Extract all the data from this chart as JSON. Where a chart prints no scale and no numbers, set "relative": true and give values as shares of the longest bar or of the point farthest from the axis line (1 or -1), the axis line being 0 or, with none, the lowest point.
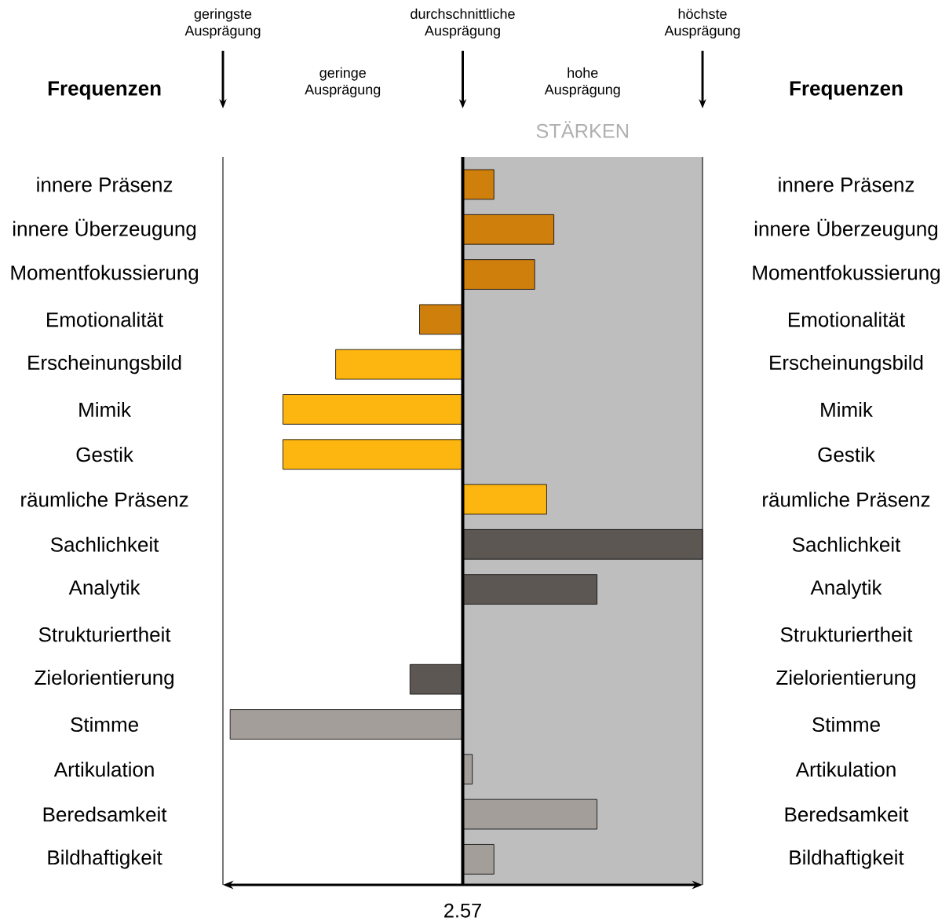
{
  "chart_data": {
    "type": "bar",
    "orientation": "horizontal",
    "relative": true,
    "categories": [
      "innere Präsenz",
      "innere Überzeugung",
      "Momentfokussierung",
      "Emotionalität",
      "Erscheinungsbild",
      "Mimik",
      "Gestik",
      "räumliche Präsenz",
      "Sachlichkeit",
      "Analytik",
      "Strukturiertheit",
      "Zielorientierung",
      "Stimme",
      "Artikulation",
      "Beredsamkeit",
      "Bildhaftigkeit"
    ],
    "values": [
      0.13,
      0.38,
      0.3,
      -0.18,
      -0.53,
      -0.75,
      -0.75,
      0.35,
      1,
      0.56,
      0,
      -0.22,
      -0.97,
      0.04,
      0.56,
      0.13
    ],
    "colors": [
      "#cf7f0b",
      "#cf7f0b",
      "#cf7f0b",
      "#cf7f0b",
      "#fdb50f",
      "#fdb50f",
      "#fdb50f",
      "#fdb50f",
      "#5d5753",
      "#5d5753",
      "#5d5753",
      "#5d5753",
      "#a39e99",
      "#a39e99",
      "#a39e99",
      "#a39e99"
    ],
    "bands": [
      {
        "axis": "x",
        "from": 0,
        "to": 1,
        "label": "STÄRKEN",
        "color": "#bebebe"
      }
    ],
    "ref_lines": [
      {
        "axis": "x",
        "value": 0,
        "color": "#000000"
      }
    ],
    "annotations": [
      "geringste Ausprägung",
      "durchschnittliche Ausprägung",
      "höchste Ausprägung",
      "geringe Ausprägung",
      "hohe Ausprägung",
      "Frequenzen",
      "Frequenzen",
      "2.57"
    ]
  }
}
